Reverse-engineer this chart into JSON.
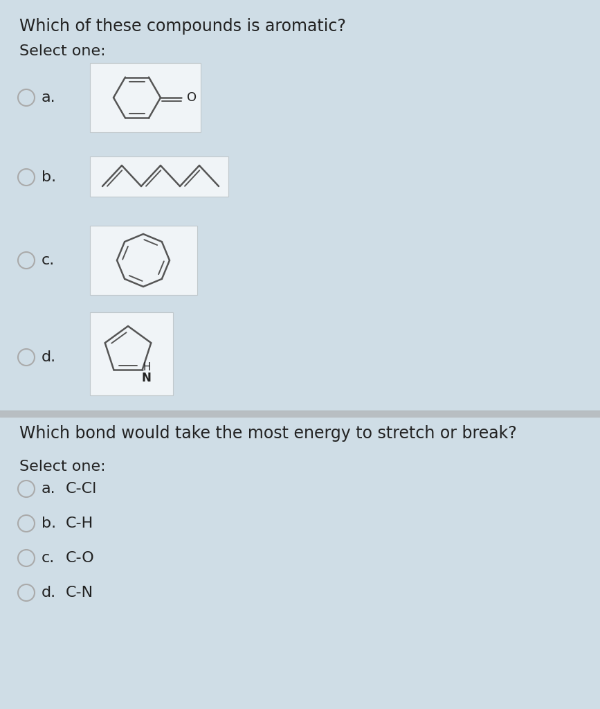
{
  "bg_color": "#cfdde6",
  "box_color": "#f0f4f7",
  "line_color": "#555555",
  "text_color": "#222222",
  "question1": "Which of these compounds is aromatic?",
  "select_one": "Select one:",
  "question2": "Which bond would take the most energy to stretch or break?",
  "options_q1_labels": [
    "a.",
    "b.",
    "c.",
    "d."
  ],
  "options_q2_labels": [
    "a.",
    "b.",
    "c.",
    "d."
  ],
  "options_q2_text": [
    "C-Cl",
    "C-H",
    "C-O",
    "C-N"
  ],
  "font_size_q": 17,
  "font_size_opt": 16,
  "radio_color": "#aaaaaa",
  "divider_color": "#aaaaaa"
}
